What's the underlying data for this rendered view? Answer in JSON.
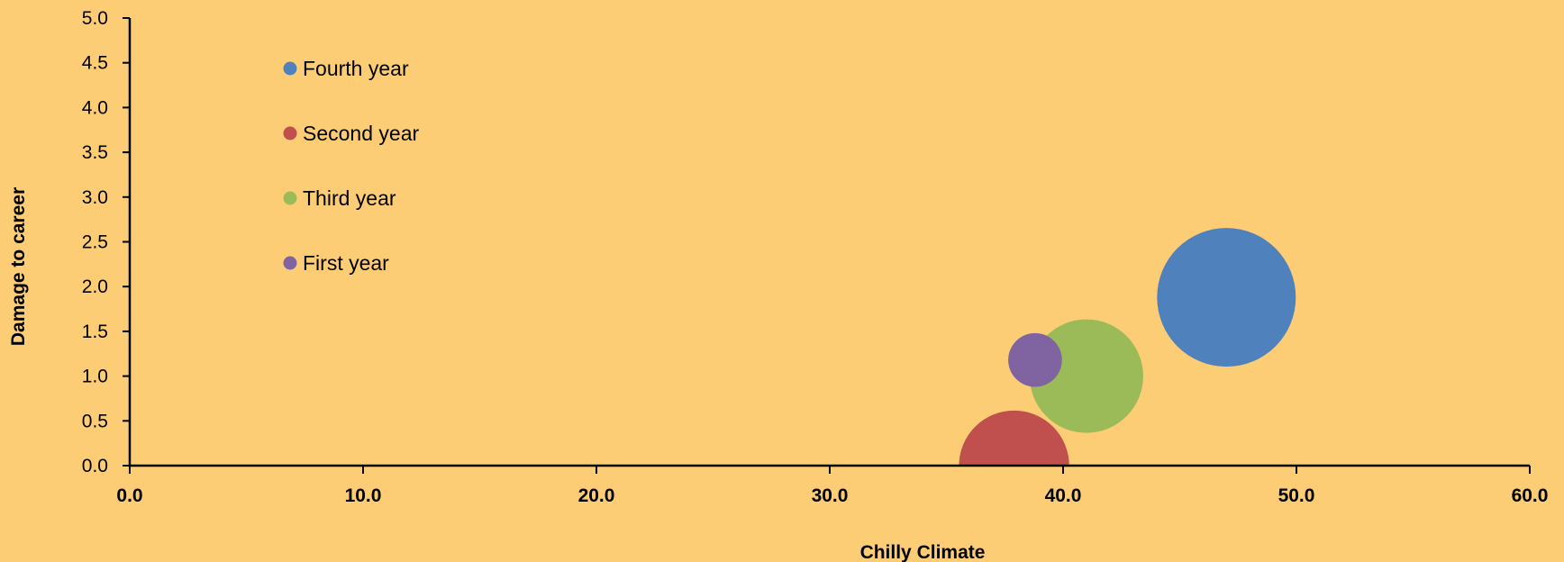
{
  "chart_data": {
    "type": "scatter",
    "title": "",
    "xlabel": "Chilly Climate",
    "ylabel": "Damage to career",
    "xlim": [
      0,
      60
    ],
    "ylim": [
      0,
      5
    ],
    "x_ticks": [
      "0.0",
      "10.0",
      "20.0",
      "30.0",
      "40.0",
      "50.0",
      "60.0"
    ],
    "y_ticks": [
      "0.0",
      "0.5",
      "1.0",
      "1.5",
      "2.0",
      "2.5",
      "3.0",
      "3.5",
      "4.0",
      "4.5",
      "5.0"
    ],
    "grid": false,
    "legend_position": "top-left",
    "series": [
      {
        "name": "Fourth year",
        "color": "#4F81BD",
        "x": 47.0,
        "y": 1.88,
        "size": 1.0
      },
      {
        "name": "Second year",
        "color": "#C0504D",
        "x": 37.9,
        "y": 0.0,
        "size": 0.63
      },
      {
        "name": "Third year",
        "color": "#9BBB59",
        "x": 41.0,
        "y": 1.0,
        "size": 0.67
      },
      {
        "name": "First year",
        "color": "#8064A2",
        "x": 38.8,
        "y": 1.18,
        "size": 0.15
      }
    ]
  }
}
